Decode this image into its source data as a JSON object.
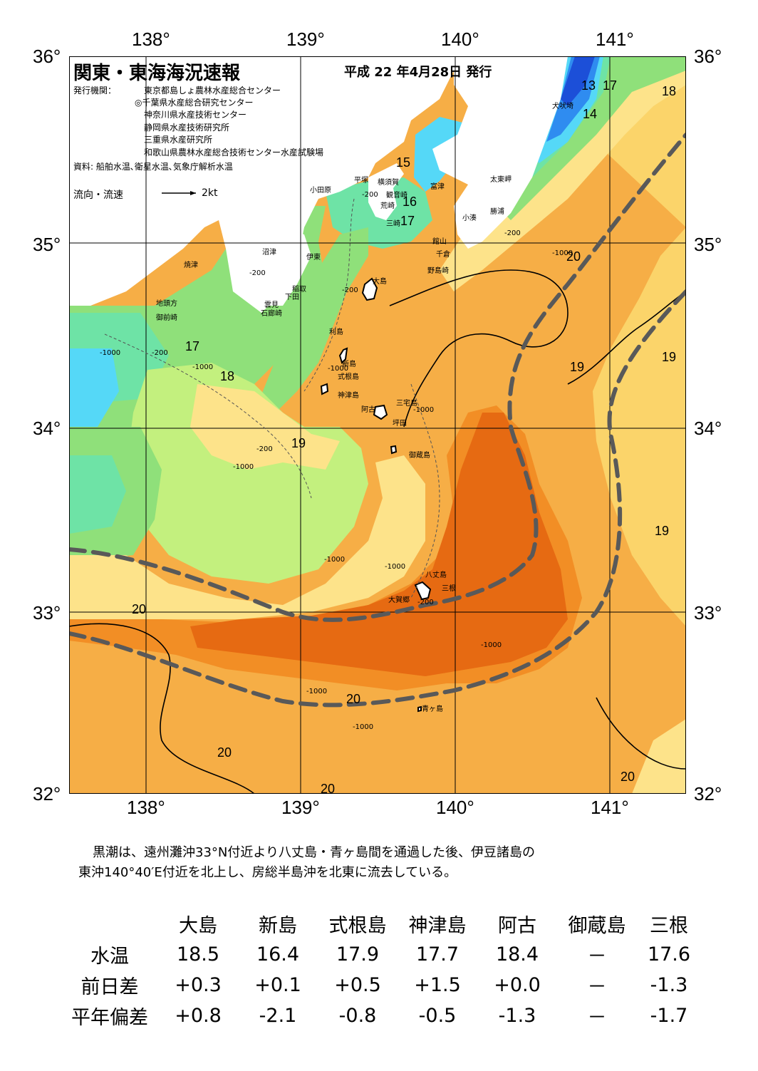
{
  "title": "関東・東海海況速報",
  "issue_date": "平成 22 年4月28日 発行",
  "publishers_label": "発行機関：",
  "publishers": [
    "東京都島しょ農林水産総合センター",
    "◎千葉県水産総合研究センター",
    "神奈川県水産技術センター",
    "静岡県水産技術研究所",
    "三重県水産研究所",
    "和歌山県農林水産総合技術センター水産試験場"
  ],
  "sources": "資料: 船舶水温､衛星水温､気象庁解析水温",
  "legend": {
    "label": "流向・流速",
    "scale": "2kt"
  },
  "axes": {
    "lon_labels": [
      "138°",
      "139°",
      "140°",
      "141°"
    ],
    "lat_labels": [
      "36°",
      "35°",
      "34°",
      "33°",
      "32°"
    ]
  },
  "place_names": {
    "odawara": "小田原",
    "hiratsuka": "平塚",
    "yokosuka": "横須賀",
    "kannonzaki": "観音崎",
    "arasaki": "荒崎",
    "misaki": "三崎",
    "futtsu": "富津",
    "tateyama": "館山",
    "chikura": "千倉",
    "nojimazaki": "野島崎",
    "kominato": "小湊",
    "katsuura": "勝浦",
    "taitomisaki": "太東岬",
    "inubozaki": "犬吠埼",
    "numazu": "沼津",
    "ito": "伊東",
    "yaizu": "焼津",
    "inatori": "稲取",
    "shimoda": "下田",
    "kumomi": "雲見",
    "irozaki": "石廊崎",
    "jitokata": "地頭方",
    "omaezaki": "御前崎",
    "oshima": "大島",
    "toshima": "利島",
    "niijima": "新島",
    "shikinejima": "式根島",
    "kozushima": "神津島",
    "miyakejima": "三宅島",
    "ako": "阿古",
    "tsuboda": "坪田",
    "mikurajima": "御蔵島",
    "hachijojima": "八丈島",
    "mitsune": "三根",
    "okago": "大賀郷",
    "aogashima": "青ヶ島"
  },
  "isotherm_labels": [
    "13",
    "14",
    "15",
    "16",
    "17",
    "17",
    "17",
    "18",
    "18",
    "19",
    "19",
    "19",
    "19",
    "20",
    "20",
    "20",
    "20",
    "20",
    "20"
  ],
  "depth_labels": [
    "-200",
    "-1000"
  ],
  "summary": [
    "黒潮は、遠州灘沖33°N付近より八丈島・青ヶ島間を通過した後、伊豆諸島の",
    "東沖140°40′E付近を北上し、房総半島沖を北東に流去している。"
  ],
  "table": {
    "columns": [
      "大島",
      "新島",
      "式根島",
      "神津島",
      "阿古",
      "御蔵島",
      "三根"
    ],
    "rows": [
      {
        "label": "水温",
        "values": [
          "18.5",
          "16.4",
          "17.9",
          "17.7",
          "18.4",
          "－",
          "17.6"
        ]
      },
      {
        "label": "前日差",
        "values": [
          "+0.3",
          "+0.1",
          "+0.5",
          "+1.5",
          "+0.0",
          "－",
          "-1.3"
        ]
      },
      {
        "label": "平年偏差",
        "values": [
          "+0.8",
          "-2.1",
          "-0.8",
          "-0.5",
          "-1.3",
          "－",
          "-1.7"
        ]
      }
    ]
  },
  "colors": {
    "sst_13": "#1c4fd8",
    "sst_14": "#2f8cf0",
    "sst_15": "#55d8f7",
    "sst_16": "#6ee3a6",
    "sst_17": "#8fe07a",
    "sst_18": "#c3f07e",
    "sst_19": "#fde38a",
    "sst_195": "#fbd46a",
    "sst_20": "#f6ae46",
    "sst_21": "#f28e25",
    "sst_22": "#e66a12",
    "land": "#ffffff",
    "kuroshio_axis": "#595959"
  }
}
